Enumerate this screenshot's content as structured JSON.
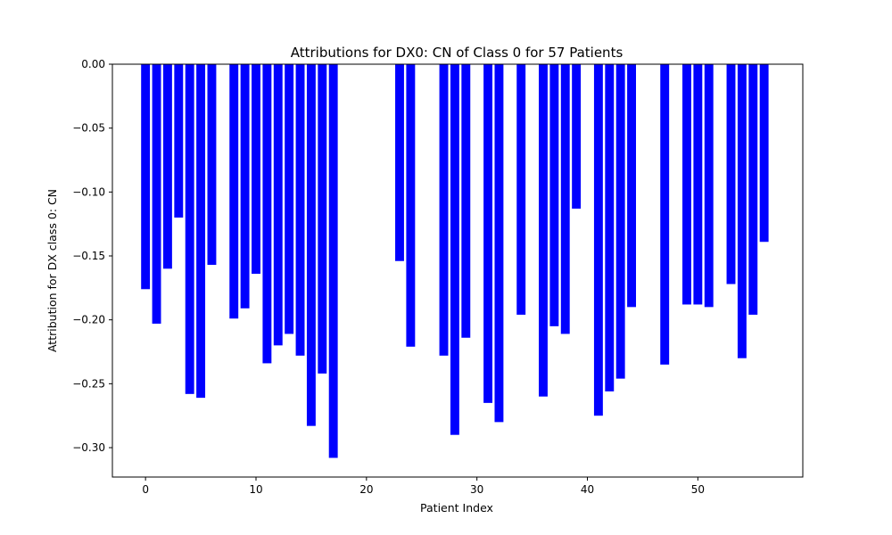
{
  "chart_data": {
    "type": "bar",
    "title": "Attributions for DX0: CN of Class 0 for 57 Patients",
    "xlabel": "Patient Index",
    "ylabel": "Attribution for DX class 0: CN",
    "xlim": [
      -3,
      59.5
    ],
    "ylim": [
      -0.323,
      0.0
    ],
    "xticks": [
      0,
      10,
      20,
      30,
      40,
      50
    ],
    "yticks": [
      0.0,
      -0.05,
      -0.1,
      -0.15,
      -0.2,
      -0.25,
      -0.3
    ],
    "ytick_labels": [
      "0.00",
      "−0.05",
      "−0.10",
      "−0.15",
      "−0.20",
      "−0.25",
      "−0.30"
    ],
    "grid": false,
    "bar_color": "#0000ff",
    "bar_width": 0.8,
    "x": [
      0,
      1,
      2,
      3,
      4,
      5,
      6,
      8,
      9,
      10,
      11,
      12,
      13,
      14,
      15,
      16,
      17,
      23,
      24,
      27,
      28,
      29,
      31,
      32,
      34,
      36,
      37,
      38,
      39,
      41,
      42,
      43,
      44,
      47,
      49,
      50,
      51,
      53,
      54,
      55,
      56
    ],
    "values": [
      -0.176,
      -0.203,
      -0.16,
      -0.12,
      -0.258,
      -0.261,
      -0.157,
      -0.199,
      -0.191,
      -0.164,
      -0.234,
      -0.22,
      -0.211,
      -0.228,
      -0.283,
      -0.242,
      -0.308,
      -0.154,
      -0.221,
      -0.228,
      -0.29,
      -0.214,
      -0.265,
      -0.28,
      -0.196,
      -0.26,
      -0.205,
      -0.211,
      -0.113,
      -0.275,
      -0.256,
      -0.246,
      -0.19,
      -0.235,
      -0.188,
      -0.188,
      -0.19,
      -0.172,
      -0.23,
      -0.196,
      -0.139
    ]
  }
}
